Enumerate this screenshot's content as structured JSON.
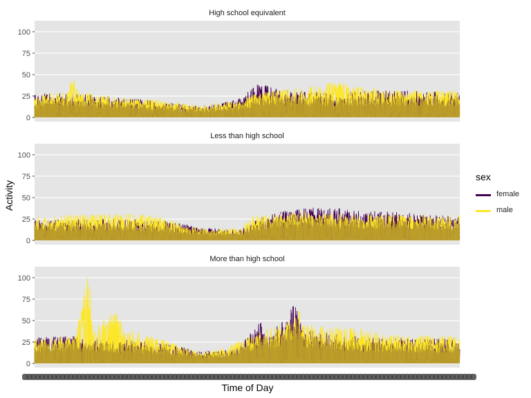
{
  "chart_data": {
    "type": "line",
    "xlabel": "Time of Day",
    "ylabel": "Activity",
    "ylim": [
      0,
      108
    ],
    "yticks": [
      0,
      25,
      50,
      75,
      100
    ],
    "x": {
      "start": 1,
      "end": 1440,
      "step": 1,
      "tick_labels_overplotted": true
    },
    "legend": {
      "title": "sex",
      "position": "right",
      "entries": [
        {
          "name": "female",
          "color": "#440154"
        },
        {
          "name": "male",
          "color": "#FDE725"
        }
      ]
    },
    "series_colors": {
      "female": "#440154",
      "male": "#FDE725",
      "overlap": "#B89A28"
    },
    "panels": [
      {
        "title": "High school equivalent",
        "series": [
          {
            "name": "female",
            "profile_keypoints": [
              [
                0,
                26
              ],
              [
                120,
                27
              ],
              [
                300,
                22
              ],
              [
                420,
                18
              ],
              [
                560,
                12
              ],
              [
                690,
                20
              ],
              [
                760,
                38
              ],
              [
                840,
                30
              ],
              [
                1000,
                28
              ],
              [
                1200,
                30
              ],
              [
                1440,
                28
              ]
            ]
          },
          {
            "name": "male",
            "profile_keypoints": [
              [
                0,
                24
              ],
              [
                110,
                30
              ],
              [
                130,
                44
              ],
              [
                150,
                29
              ],
              [
                300,
                22
              ],
              [
                420,
                20
              ],
              [
                560,
                13
              ],
              [
                690,
                19
              ],
              [
                760,
                28
              ],
              [
                950,
                36
              ],
              [
                1000,
                40
              ],
              [
                1200,
                30
              ],
              [
                1440,
                30
              ]
            ]
          }
        ]
      },
      {
        "title": "Less than high school",
        "series": [
          {
            "name": "female",
            "profile_keypoints": [
              [
                0,
                24
              ],
              [
                200,
                24
              ],
              [
                400,
                23
              ],
              [
                500,
                19
              ],
              [
                560,
                14
              ],
              [
                620,
                13
              ],
              [
                700,
                12
              ],
              [
                760,
                25
              ],
              [
                860,
                34
              ],
              [
                1000,
                38
              ],
              [
                1100,
                33
              ],
              [
                1250,
                31
              ],
              [
                1440,
                26
              ]
            ]
          },
          {
            "name": "male",
            "profile_keypoints": [
              [
                0,
                26
              ],
              [
                200,
                30
              ],
              [
                360,
                30
              ],
              [
                460,
                25
              ],
              [
                500,
                17
              ],
              [
                600,
                13
              ],
              [
                700,
                13
              ],
              [
                740,
                30
              ],
              [
                800,
                29
              ],
              [
                900,
                33
              ],
              [
                1000,
                30
              ],
              [
                1200,
                29
              ],
              [
                1440,
                28
              ]
            ]
          }
        ]
      },
      {
        "title": "More than high school",
        "series": [
          {
            "name": "female",
            "profile_keypoints": [
              [
                0,
                30
              ],
              [
                150,
                30
              ],
              [
                300,
                27
              ],
              [
                450,
                22
              ],
              [
                560,
                14
              ],
              [
                650,
                15
              ],
              [
                720,
                28
              ],
              [
                760,
                48
              ],
              [
                800,
                35
              ],
              [
                850,
                50
              ],
              [
                880,
                66
              ],
              [
                910,
                40
              ],
              [
                1000,
                33
              ],
              [
                1200,
                28
              ],
              [
                1440,
                28
              ]
            ]
          },
          {
            "name": "male",
            "profile_keypoints": [
              [
                0,
                28
              ],
              [
                140,
                30
              ],
              [
                160,
                68
              ],
              [
                185,
                103
              ],
              [
                200,
                40
              ],
              [
                280,
                62
              ],
              [
                300,
                40
              ],
              [
                380,
                32
              ],
              [
                450,
                25
              ],
              [
                560,
                13
              ],
              [
                650,
                18
              ],
              [
                760,
                35
              ],
              [
                860,
                48
              ],
              [
                890,
                72
              ],
              [
                910,
                45
              ],
              [
                1000,
                40
              ],
              [
                1050,
                42
              ],
              [
                1200,
                32
              ],
              [
                1440,
                30
              ]
            ]
          }
        ]
      }
    ]
  }
}
